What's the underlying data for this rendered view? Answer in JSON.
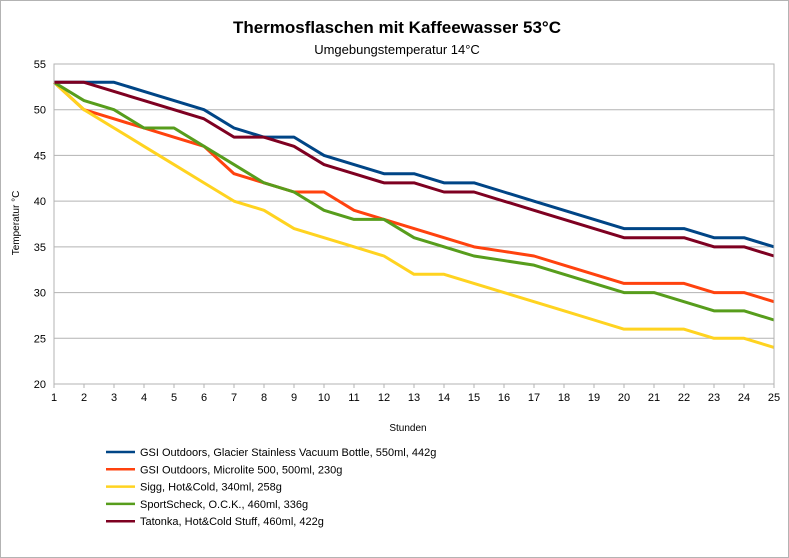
{
  "chart_data": {
    "type": "line",
    "title": "Thermosflaschen mit Kaffeewasser 53°C",
    "subtitle": "Umgebungstemperatur 14°C",
    "xlabel": "Stunden",
    "ylabel": "Temperatur °C",
    "ylim": [
      20,
      55
    ],
    "yticks": [
      20,
      25,
      30,
      35,
      40,
      45,
      50,
      55
    ],
    "grid": "horizontal",
    "legend_position": "bottom",
    "x": [
      1,
      2,
      3,
      4,
      5,
      6,
      7,
      8,
      9,
      10,
      11,
      12,
      13,
      14,
      15,
      16,
      17,
      18,
      19,
      20,
      21,
      22,
      23,
      24,
      25
    ],
    "series": [
      {
        "name": "GSI Outdoors, Glacier Stainless Vacuum Bottle, 550ml, 442g",
        "color": "#004586",
        "values": [
          53,
          53,
          53,
          52,
          51,
          50,
          48,
          47,
          47,
          45,
          44,
          43,
          43,
          42,
          42,
          41,
          40,
          39,
          38,
          37,
          37,
          37,
          36,
          36,
          35
        ]
      },
      {
        "name": "GSI Outdoors, Microlite 500, 500ml, 230g",
        "color": "#ff420e",
        "values": [
          53,
          50,
          49,
          48,
          47,
          46,
          43,
          42,
          41,
          41,
          39,
          38,
          37,
          36,
          35,
          34.5,
          34,
          33,
          32,
          31,
          31,
          31,
          30,
          30,
          29
        ]
      },
      {
        "name": "Sigg, Hot&Cold, 340ml, 258g",
        "color": "#ffd320",
        "values": [
          53,
          50,
          48,
          46,
          44,
          42,
          40,
          39,
          37,
          36,
          35,
          34,
          32,
          32,
          31,
          30,
          29,
          28,
          27,
          26,
          26,
          26,
          25,
          25,
          24
        ]
      },
      {
        "name": "SportScheck, O.C.K., 460ml, 336g",
        "color": "#579d1c",
        "values": [
          53,
          51,
          50,
          48,
          48,
          46,
          44,
          42,
          41,
          39,
          38,
          38,
          36,
          35,
          34,
          33.5,
          33,
          32,
          31,
          30,
          30,
          29,
          28,
          28,
          27
        ]
      },
      {
        "name": "Tatonka, Hot&Cold Stuff, 460ml, 422g",
        "color": "#7e0021",
        "values": [
          53,
          53,
          52,
          51,
          50,
          49,
          47,
          47,
          46,
          44,
          43,
          42,
          42,
          41,
          41,
          40,
          39,
          38,
          37,
          36,
          36,
          36,
          35,
          35,
          34
        ]
      }
    ]
  }
}
